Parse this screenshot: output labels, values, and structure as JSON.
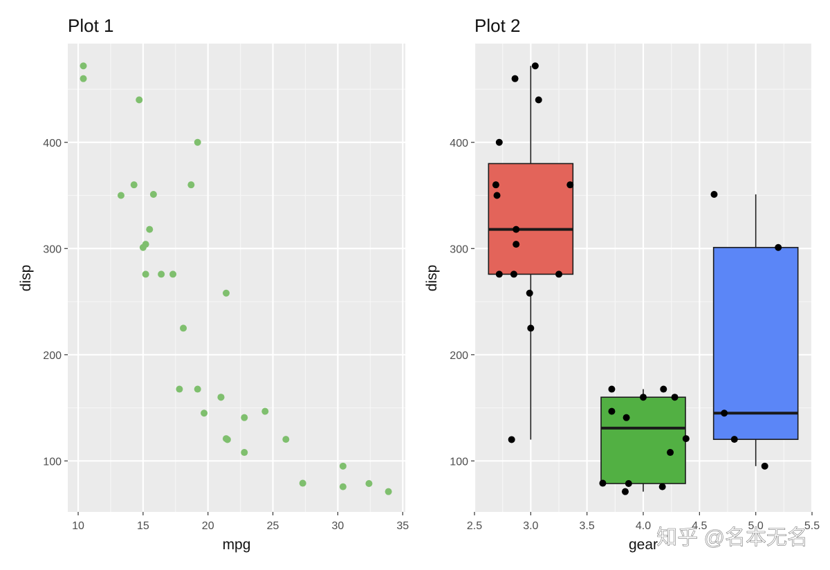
{
  "watermark": "知乎 @名本无名",
  "chart_data": [
    {
      "type": "scatter",
      "title": "Plot 1",
      "xlabel": "mpg",
      "ylabel": "disp",
      "xlim": [
        9.2,
        35.2
      ],
      "ylim": [
        52,
        493
      ],
      "xticks": [
        10,
        15,
        20,
        25,
        30,
        35
      ],
      "yticks": [
        100,
        200,
        300,
        400
      ],
      "grid": true,
      "point_color": "#7FBF6E",
      "points": [
        {
          "x": 21.0,
          "y": 160
        },
        {
          "x": 21.0,
          "y": 160
        },
        {
          "x": 22.8,
          "y": 108
        },
        {
          "x": 21.4,
          "y": 258
        },
        {
          "x": 18.7,
          "y": 360
        },
        {
          "x": 18.1,
          "y": 225
        },
        {
          "x": 14.3,
          "y": 360
        },
        {
          "x": 24.4,
          "y": 146.7
        },
        {
          "x": 22.8,
          "y": 140.8
        },
        {
          "x": 19.2,
          "y": 167.6
        },
        {
          "x": 17.8,
          "y": 167.6
        },
        {
          "x": 16.4,
          "y": 275.8
        },
        {
          "x": 17.3,
          "y": 275.8
        },
        {
          "x": 15.2,
          "y": 275.8
        },
        {
          "x": 10.4,
          "y": 472
        },
        {
          "x": 10.4,
          "y": 460
        },
        {
          "x": 14.7,
          "y": 440
        },
        {
          "x": 32.4,
          "y": 78.7
        },
        {
          "x": 30.4,
          "y": 75.7
        },
        {
          "x": 33.9,
          "y": 71.1
        },
        {
          "x": 21.5,
          "y": 120.1
        },
        {
          "x": 15.5,
          "y": 318
        },
        {
          "x": 15.2,
          "y": 304
        },
        {
          "x": 13.3,
          "y": 350
        },
        {
          "x": 19.2,
          "y": 400
        },
        {
          "x": 27.3,
          "y": 79
        },
        {
          "x": 26.0,
          "y": 120.3
        },
        {
          "x": 30.4,
          "y": 95.1
        },
        {
          "x": 15.8,
          "y": 351
        },
        {
          "x": 19.7,
          "y": 145
        },
        {
          "x": 15.0,
          "y": 301
        },
        {
          "x": 21.4,
          "y": 121
        }
      ]
    },
    {
      "type": "box",
      "title": "Plot 2",
      "xlabel": "gear",
      "ylabel": "disp",
      "xlim": [
        2.5,
        5.5
      ],
      "ylim": [
        52,
        493
      ],
      "xticks": [
        2.5,
        3.0,
        3.5,
        4.0,
        4.5,
        5.0,
        5.5
      ],
      "xtick_labels": [
        "2.5",
        "3.0",
        "3.5",
        "4.0",
        "4.5",
        "5.0",
        "5.5"
      ],
      "yticks": [
        100,
        200,
        300,
        400
      ],
      "grid": true,
      "boxes": [
        {
          "x": 3,
          "width": 0.75,
          "color": "#E3645A",
          "whisker_low": 120.1,
          "q1": 275.8,
          "median": 318,
          "q3": 380,
          "whisker_high": 472
        },
        {
          "x": 4,
          "width": 0.75,
          "color": "#52B043",
          "whisker_low": 71.1,
          "q1": 78.7,
          "median": 130.9,
          "q3": 160,
          "whisker_high": 167.6
        },
        {
          "x": 5,
          "width": 0.75,
          "color": "#5B86F7",
          "whisker_low": 95.1,
          "q1": 120.3,
          "median": 145,
          "q3": 301,
          "whisker_high": 351
        }
      ],
      "points": [
        {
          "x": 2.86,
          "y": 460
        },
        {
          "x": 3.04,
          "y": 472
        },
        {
          "x": 3.07,
          "y": 440
        },
        {
          "x": 2.72,
          "y": 400
        },
        {
          "x": 2.69,
          "y": 360
        },
        {
          "x": 3.35,
          "y": 360
        },
        {
          "x": 2.7,
          "y": 350
        },
        {
          "x": 2.87,
          "y": 318
        },
        {
          "x": 2.87,
          "y": 304
        },
        {
          "x": 2.72,
          "y": 275.8
        },
        {
          "x": 2.85,
          "y": 275.8
        },
        {
          "x": 3.25,
          "y": 275.8
        },
        {
          "x": 2.99,
          "y": 258
        },
        {
          "x": 3.0,
          "y": 225
        },
        {
          "x": 2.83,
          "y": 120.1
        },
        {
          "x": 3.72,
          "y": 167.6
        },
        {
          "x": 4.18,
          "y": 167.6
        },
        {
          "x": 4.0,
          "y": 160
        },
        {
          "x": 4.28,
          "y": 160
        },
        {
          "x": 3.72,
          "y": 146.7
        },
        {
          "x": 3.85,
          "y": 140.8
        },
        {
          "x": 4.38,
          "y": 121
        },
        {
          "x": 4.24,
          "y": 108
        },
        {
          "x": 3.64,
          "y": 79
        },
        {
          "x": 3.87,
          "y": 78.7
        },
        {
          "x": 4.17,
          "y": 75.7
        },
        {
          "x": 3.84,
          "y": 71.1
        },
        {
          "x": 4.63,
          "y": 351
        },
        {
          "x": 5.2,
          "y": 301
        },
        {
          "x": 4.72,
          "y": 145
        },
        {
          "x": 4.81,
          "y": 120.3
        },
        {
          "x": 5.08,
          "y": 95.1
        }
      ]
    }
  ]
}
